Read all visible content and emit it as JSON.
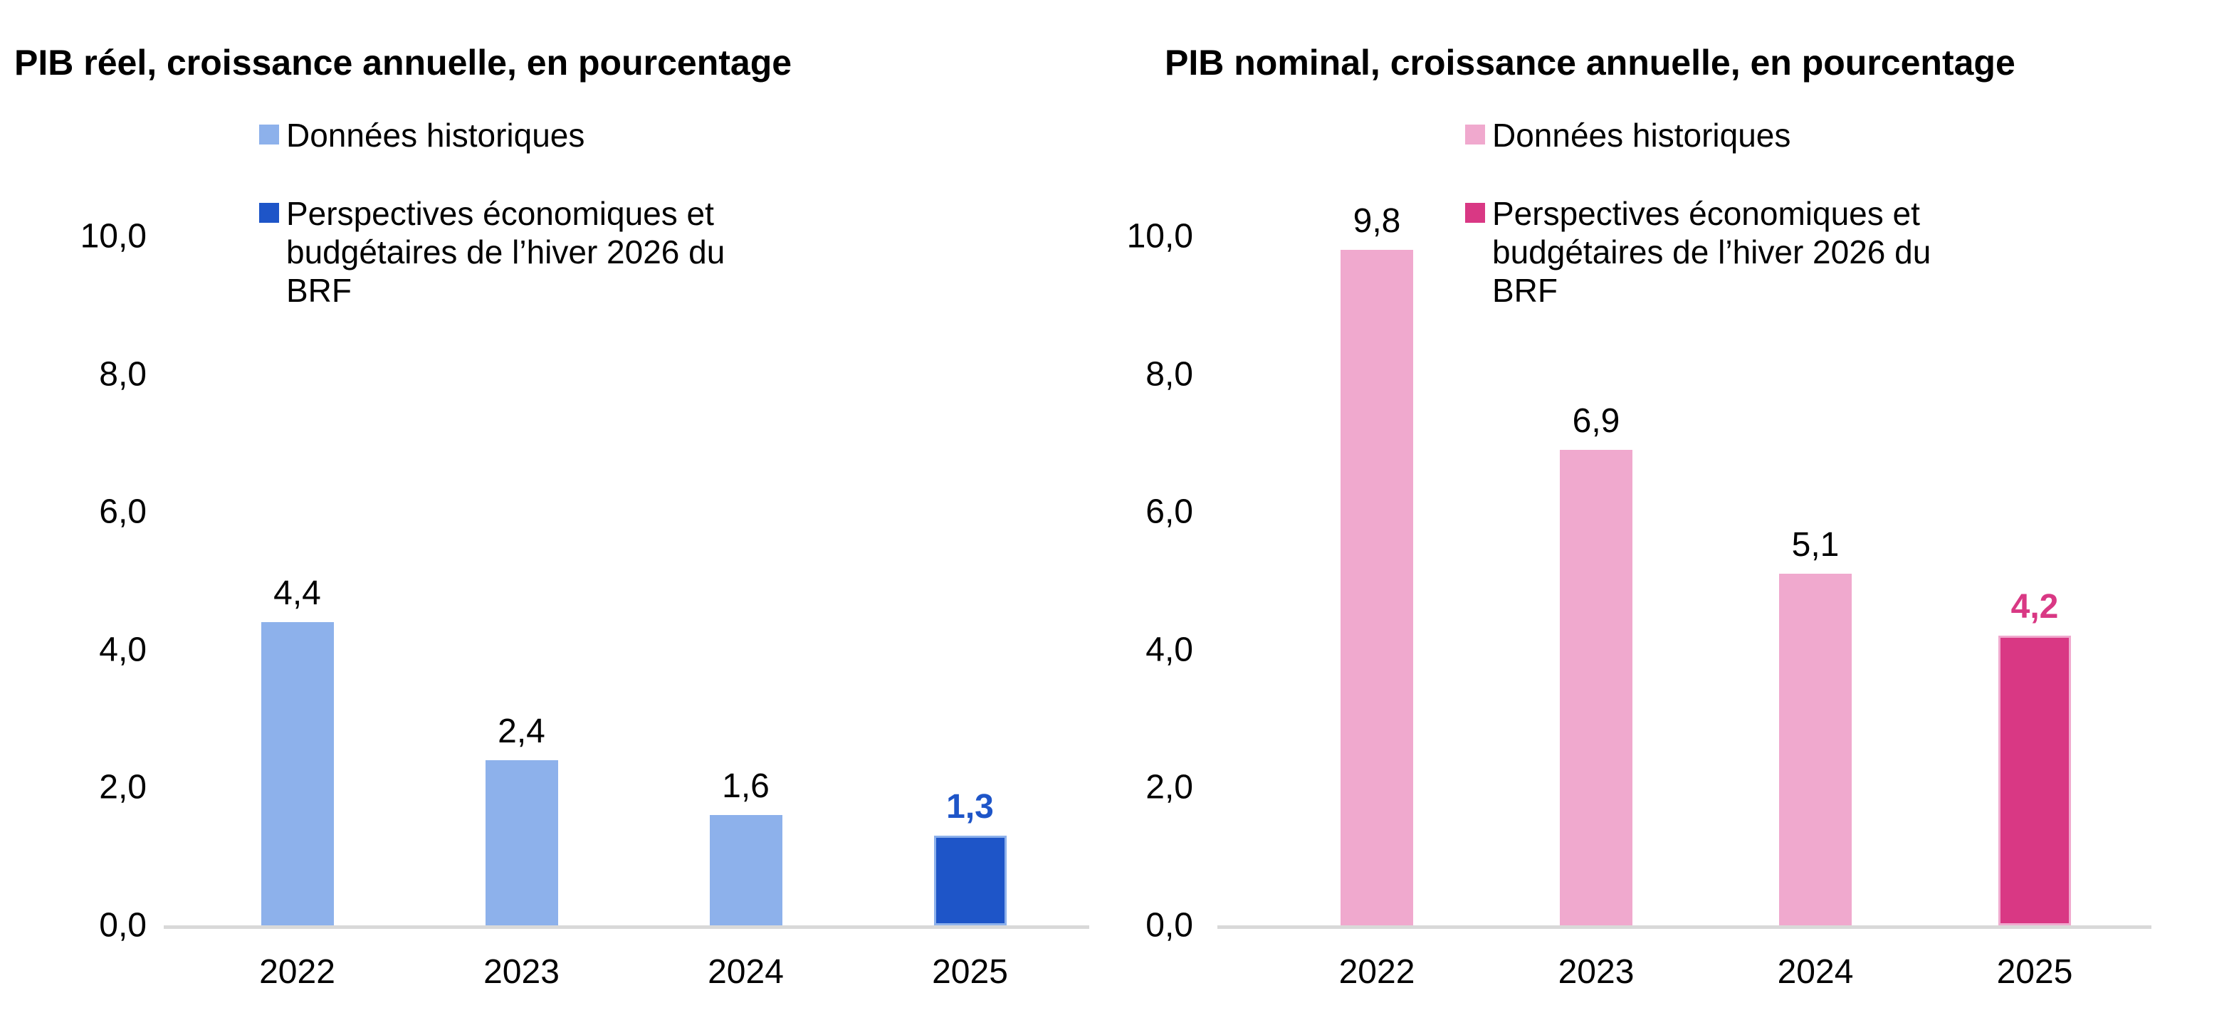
{
  "page": {
    "background": "#FFFFFF",
    "axis_color": "#D9D9D9",
    "text_color": "#000000"
  },
  "chart_data": [
    {
      "type": "bar",
      "title": "PIB réel, croissance annuelle, en pourcentage",
      "categories": [
        "2022",
        "2023",
        "2024",
        "2025"
      ],
      "values": [
        4.4,
        2.4,
        1.6,
        1.3
      ],
      "value_labels": [
        "4,4",
        "2,4",
        "1,6",
        "1,3"
      ],
      "bar_colors": [
        "#8DB1EB",
        "#8DB1EB",
        "#8DB1EB",
        "#1E55C8"
      ],
      "bar_border_colors": [
        "#8DB1EB",
        "#8DB1EB",
        "#8DB1EB",
        "#8DB1EB"
      ],
      "value_label_colors": [
        "#000000",
        "#000000",
        "#000000",
        "#1E55C8"
      ],
      "value_label_bold": [
        false,
        false,
        false,
        true
      ],
      "series": [
        {
          "name": "Données historiques",
          "values": [
            4.4,
            2.4,
            1.6,
            null
          ]
        },
        {
          "name": "Perspectives économiques et budgétaires de l’hiver 2026 du BRF",
          "values": [
            null,
            null,
            null,
            1.3
          ]
        }
      ],
      "legend": [
        {
          "label": "Données historiques",
          "color": "#8DB1EB"
        },
        {
          "label": "Perspectives économiques et budgétaires de l’hiver 2026 du BRF",
          "color": "#1E55C8"
        }
      ],
      "legend_position": "top",
      "grid": false,
      "xlabel": "",
      "ylabel": "",
      "ylim": [
        0,
        10
      ],
      "ytick_values": [
        10,
        8,
        6,
        4,
        2,
        0
      ],
      "ytick_labels": [
        "10,0",
        "8,0",
        "6,0",
        "4,0",
        "2,0",
        "0,0"
      ]
    },
    {
      "type": "bar",
      "title": "PIB nominal, croissance annuelle, en pourcentage",
      "categories": [
        "2022",
        "2023",
        "2024",
        "2025"
      ],
      "values": [
        9.8,
        6.9,
        5.1,
        4.2
      ],
      "value_labels": [
        "9,8",
        "6,9",
        "5,1",
        "4,2"
      ],
      "bar_colors": [
        "#F0A9CE",
        "#F0A9CE",
        "#F0A9CE",
        "#D93884"
      ],
      "bar_border_colors": [
        "#F0A9CE",
        "#F0A9CE",
        "#F0A9CE",
        "#F0A9CE"
      ],
      "value_label_colors": [
        "#000000",
        "#000000",
        "#000000",
        "#D93884"
      ],
      "value_label_bold": [
        false,
        false,
        false,
        true
      ],
      "series": [
        {
          "name": "Données historiques",
          "values": [
            9.8,
            6.9,
            5.1,
            null
          ]
        },
        {
          "name": "Perspectives économiques et budgétaires de l’hiver 2026 du BRF",
          "values": [
            null,
            null,
            null,
            4.2
          ]
        }
      ],
      "legend": [
        {
          "label": "Données historiques",
          "color": "#F0A9CE"
        },
        {
          "label": "Perspectives économiques et budgétaires de l’hiver 2026 du BRF",
          "color": "#D93884"
        }
      ],
      "legend_position": "top",
      "grid": false,
      "xlabel": "",
      "ylabel": "",
      "ylim": [
        0,
        10
      ],
      "ytick_values": [
        10,
        8,
        6,
        4,
        2,
        0
      ],
      "ytick_labels": [
        "10,0",
        "8,0",
        "6,0",
        "4,0",
        "2,0",
        "0,0"
      ]
    }
  ]
}
